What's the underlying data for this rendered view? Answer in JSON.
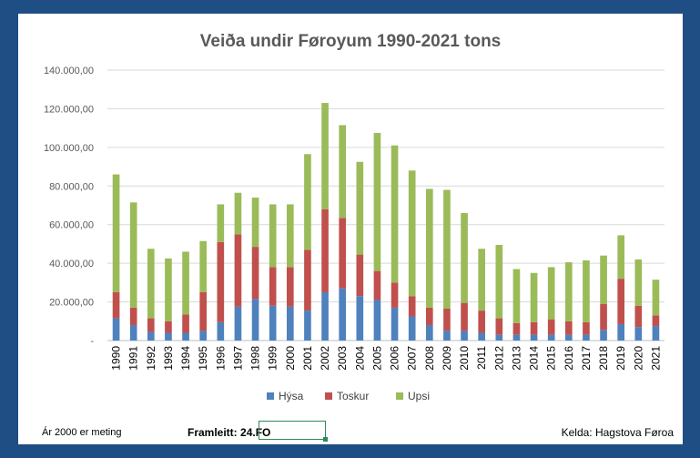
{
  "chart_data": {
    "type": "bar",
    "stacked": true,
    "title": "Veiða undir Føroyum 1990-2021 tons",
    "xlabel": "",
    "ylabel": "",
    "ylim": [
      0,
      140000
    ],
    "yticks": [
      "-",
      "20.000,00",
      "40.000,00",
      "60.000,00",
      "80.000,00",
      "100.000,00",
      "120.000,00",
      "140.000,00"
    ],
    "grid": true,
    "legend_position": "bottom",
    "categories": [
      "1990",
      "1991",
      "1992",
      "1993",
      "1994",
      "1995",
      "1996",
      "1997",
      "1998",
      "1999",
      "2000",
      "2001",
      "2002",
      "2003",
      "2004",
      "2005",
      "2006",
      "2007",
      "2008",
      "2009",
      "2010",
      "2011",
      "2012",
      "2013",
      "2014",
      "2015",
      "2016",
      "2017",
      "2018",
      "2019",
      "2020",
      "2021"
    ],
    "series": [
      {
        "name": "Hýsa",
        "color": "#4f81bd",
        "values": [
          11500,
          8000,
          4500,
          4000,
          4000,
          5000,
          9500,
          17500,
          21500,
          18000,
          17500,
          15500,
          25000,
          27000,
          23000,
          21000,
          17000,
          12500,
          8000,
          5000,
          5000,
          4000,
          3000,
          3000,
          3000,
          3000,
          3000,
          3000,
          5500,
          8500,
          7000,
          7500
        ]
      },
      {
        "name": "Toskur",
        "color": "#c0504d",
        "values": [
          13500,
          9000,
          7000,
          6000,
          9500,
          20000,
          41500,
          37500,
          27000,
          20000,
          20500,
          31500,
          43000,
          36500,
          21500,
          15000,
          13000,
          10500,
          9000,
          11500,
          14500,
          11500,
          8500,
          6000,
          6500,
          8000,
          7000,
          6500,
          13500,
          23500,
          11000,
          5500
        ]
      },
      {
        "name": "Upsi",
        "color": "#9bbb59",
        "values": [
          61000,
          54500,
          36000,
          32500,
          32500,
          26500,
          19500,
          21500,
          25500,
          32500,
          32500,
          49500,
          55000,
          48000,
          48000,
          71500,
          71000,
          65000,
          61500,
          61500,
          46500,
          32000,
          38000,
          28000,
          25500,
          27000,
          30500,
          32000,
          25000,
          22500,
          24000,
          18500
        ]
      }
    ]
  },
  "footer": {
    "note": "Ár 2000 er meting",
    "produced_label": "Framleitt: ",
    "produced_value": "24.FO",
    "source": "Kelda: Hagstova Føroa"
  }
}
